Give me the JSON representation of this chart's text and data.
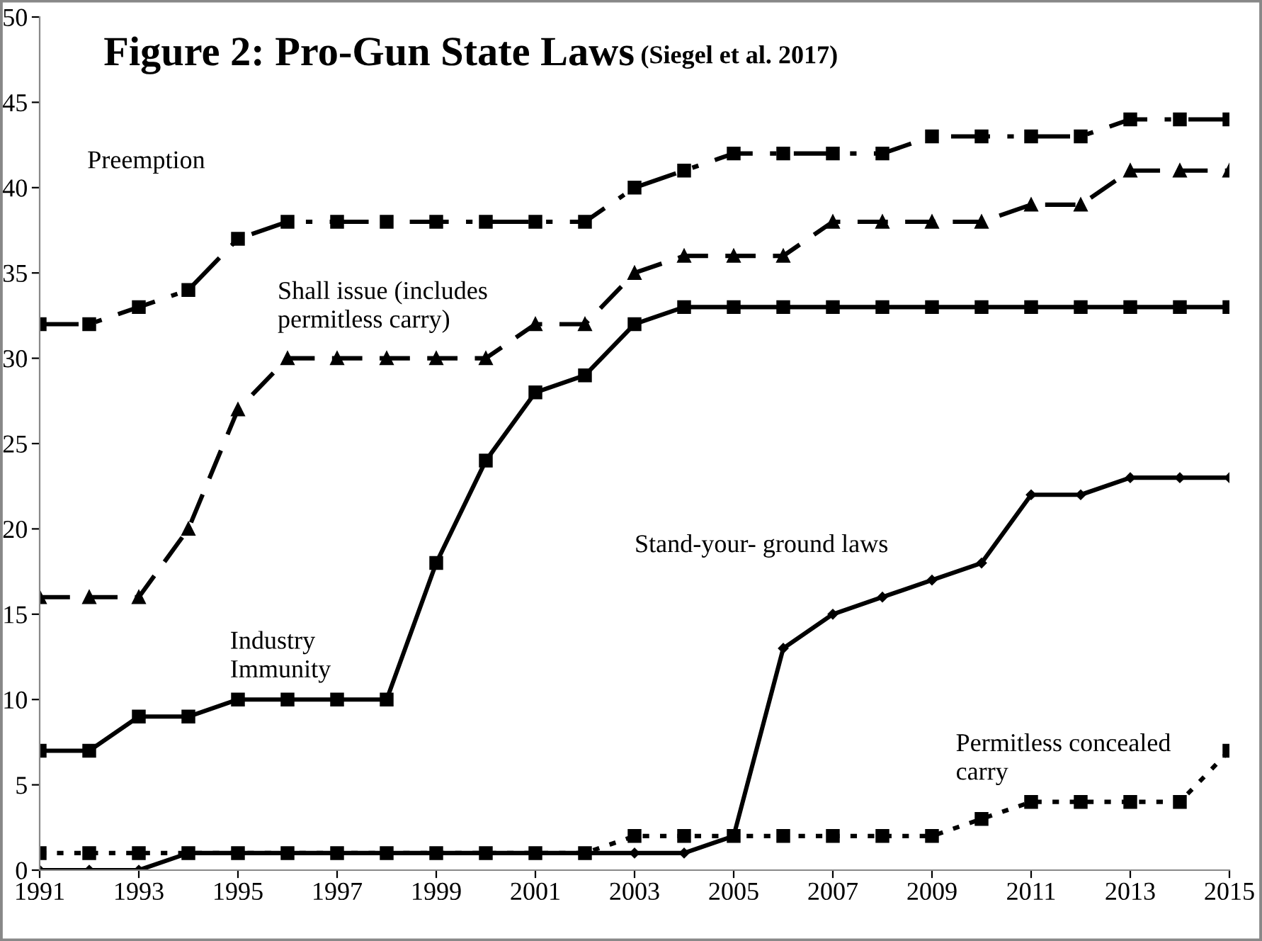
{
  "chart_data": {
    "type": "line",
    "title": "Figure 2: Pro-Gun State Laws",
    "subtitle": "(Siegel et al. 2017)",
    "x": [
      1991,
      1992,
      1993,
      1994,
      1995,
      1996,
      1997,
      1998,
      1999,
      2000,
      2001,
      2002,
      2003,
      2004,
      2005,
      2006,
      2007,
      2008,
      2009,
      2010,
      2011,
      2012,
      2013,
      2014,
      2015
    ],
    "series": [
      {
        "name": "Preemption",
        "color": "#000000",
        "marker": "square",
        "line_style": "dashdot",
        "values": [
          32,
          32,
          33,
          34,
          37,
          38,
          38,
          38,
          38,
          38,
          38,
          38,
          40,
          41,
          42,
          42,
          42,
          42,
          43,
          43,
          43,
          43,
          44,
          44,
          44
        ]
      },
      {
        "name": "Shall issue (includes\npermitless carry)",
        "color": "#000000",
        "marker": "triangle",
        "line_style": "dashed",
        "values": [
          16,
          16,
          16,
          20,
          27,
          30,
          30,
          30,
          30,
          30,
          32,
          32,
          35,
          36,
          36,
          36,
          38,
          38,
          38,
          38,
          39,
          39,
          41,
          41,
          41
        ]
      },
      {
        "name": "Industry\nImmunity",
        "color": "#000000",
        "marker": "square",
        "line_style": "solid",
        "values": [
          7,
          7,
          9,
          9,
          10,
          10,
          10,
          10,
          18,
          24,
          28,
          29,
          32,
          33,
          33,
          33,
          33,
          33,
          33,
          33,
          33,
          33,
          33,
          33,
          33
        ]
      },
      {
        "name": "Stand-your- ground laws",
        "color": "#000000",
        "marker": "diamond",
        "line_style": "solid",
        "values": [
          0,
          0,
          0,
          1,
          1,
          1,
          1,
          1,
          1,
          1,
          1,
          1,
          1,
          1,
          2,
          13,
          15,
          16,
          17,
          18,
          22,
          22,
          23,
          23,
          23
        ]
      },
      {
        "name": "Permitless concealed\ncarry",
        "color": "#000000",
        "marker": "square",
        "line_style": "dotted",
        "values": [
          1,
          1,
          1,
          1,
          1,
          1,
          1,
          1,
          1,
          1,
          1,
          1,
          2,
          2,
          2,
          2,
          2,
          2,
          2,
          3,
          4,
          4,
          4,
          4,
          7
        ]
      }
    ],
    "xlim": [
      1991,
      2015
    ],
    "xticks": [
      1991,
      1993,
      1995,
      1997,
      1999,
      2001,
      2003,
      2005,
      2007,
      2009,
      2011,
      2013,
      2015
    ],
    "ylim": [
      0,
      50
    ],
    "yticks": [
      0,
      5,
      10,
      15,
      20,
      25,
      30,
      35,
      40,
      45,
      50
    ],
    "grid": false,
    "legend": false
  }
}
